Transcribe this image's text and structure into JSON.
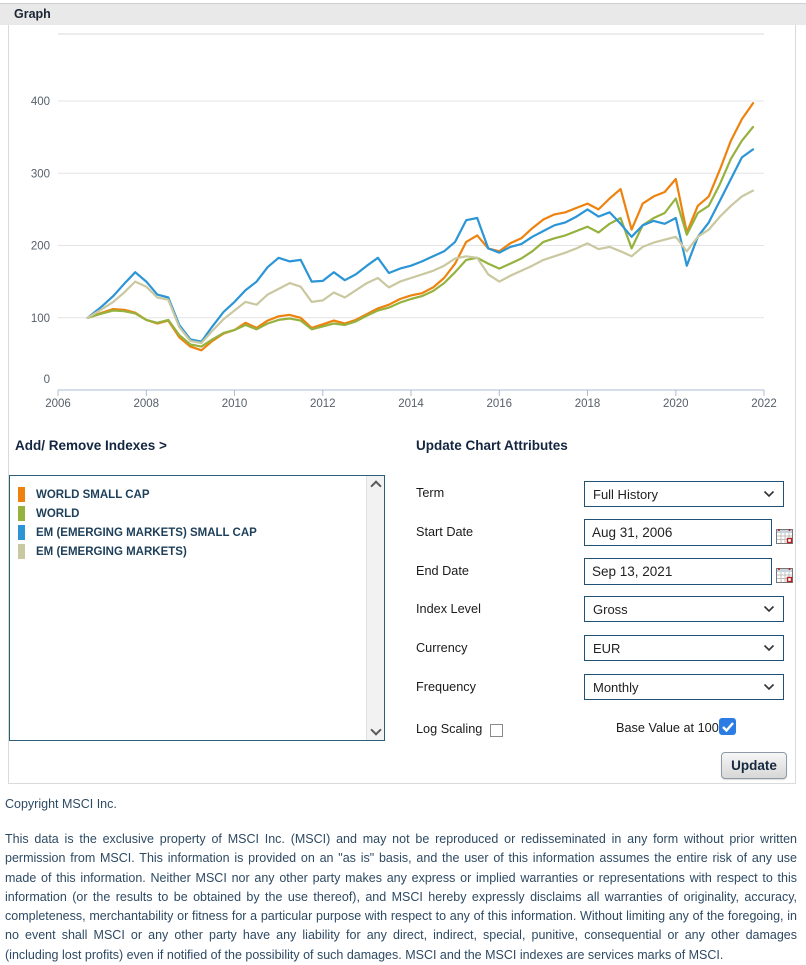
{
  "header": {
    "title": "Graph"
  },
  "chart_data": {
    "type": "line",
    "x": [
      2006.67,
      2007.0,
      2007.25,
      2007.5,
      2007.75,
      2008.0,
      2008.25,
      2008.5,
      2008.75,
      2009.0,
      2009.25,
      2009.5,
      2009.75,
      2010.0,
      2010.25,
      2010.5,
      2010.75,
      2011.0,
      2011.25,
      2011.5,
      2011.75,
      2012.0,
      2012.25,
      2012.5,
      2012.75,
      2013.0,
      2013.25,
      2013.5,
      2013.75,
      2014.0,
      2014.25,
      2014.5,
      2014.75,
      2015.0,
      2015.25,
      2015.5,
      2015.75,
      2016.0,
      2016.25,
      2016.5,
      2016.75,
      2017.0,
      2017.25,
      2017.5,
      2017.75,
      2018.0,
      2018.25,
      2018.5,
      2018.75,
      2019.0,
      2019.25,
      2019.5,
      2019.75,
      2020.0,
      2020.25,
      2020.5,
      2020.75,
      2021.0,
      2021.25,
      2021.5,
      2021.75
    ],
    "series": [
      {
        "name": "WORLD SMALL CAP",
        "color": "#ee820e",
        "values": [
          100,
          107,
          112,
          111,
          107,
          97,
          92,
          96,
          73,
          60,
          55,
          68,
          78,
          83,
          93,
          86,
          96,
          102,
          104,
          100,
          86,
          91,
          96,
          92,
          97,
          105,
          113,
          118,
          126,
          131,
          134,
          142,
          155,
          175,
          205,
          214,
          196,
          192,
          203,
          210,
          224,
          236,
          243,
          246,
          252,
          258,
          250,
          265,
          278,
          222,
          258,
          268,
          274,
          292,
          218,
          255,
          268,
          305,
          345,
          375,
          397
        ]
      },
      {
        "name": "WORLD",
        "color": "#96b23e",
        "values": [
          100,
          106,
          110,
          109,
          106,
          97,
          93,
          97,
          76,
          63,
          60,
          70,
          79,
          83,
          90,
          84,
          92,
          97,
          99,
          96,
          84,
          88,
          92,
          90,
          95,
          103,
          110,
          114,
          121,
          126,
          130,
          137,
          148,
          163,
          180,
          183,
          175,
          168,
          175,
          182,
          192,
          205,
          210,
          214,
          220,
          226,
          218,
          230,
          238,
          196,
          228,
          238,
          245,
          265,
          215,
          245,
          255,
          285,
          320,
          345,
          364
        ]
      },
      {
        "name": "EM (EMERGING MARKETS) SMALL CAP",
        "color": "#2b95d6",
        "values": [
          100,
          116,
          130,
          147,
          163,
          150,
          132,
          128,
          90,
          70,
          67,
          88,
          108,
          122,
          138,
          150,
          170,
          183,
          178,
          180,
          150,
          151,
          163,
          152,
          160,
          172,
          183,
          162,
          168,
          172,
          178,
          185,
          192,
          205,
          235,
          238,
          196,
          190,
          198,
          202,
          212,
          220,
          228,
          232,
          240,
          250,
          240,
          246,
          230,
          212,
          228,
          234,
          230,
          238,
          172,
          212,
          232,
          262,
          292,
          322,
          333
        ]
      },
      {
        "name": "EM (EMERGING MARKETS)",
        "color": "#cac8a0",
        "values": [
          100,
          112,
          122,
          135,
          150,
          143,
          128,
          125,
          87,
          68,
          65,
          82,
          98,
          110,
          122,
          118,
          132,
          140,
          148,
          143,
          122,
          124,
          135,
          128,
          138,
          148,
          155,
          142,
          150,
          155,
          160,
          165,
          172,
          182,
          185,
          183,
          160,
          150,
          158,
          165,
          172,
          180,
          185,
          190,
          196,
          203,
          195,
          198,
          192,
          185,
          198,
          204,
          208,
          212,
          192,
          212,
          222,
          240,
          255,
          268,
          276
        ]
      }
    ],
    "title": "",
    "xlabel": "",
    "ylabel": "",
    "x_ticks": [
      2006,
      2008,
      2010,
      2012,
      2014,
      2016,
      2018,
      2020,
      2022
    ],
    "y_ticks": [
      0,
      100,
      200,
      300,
      400
    ],
    "ylim": [
      0,
      490
    ],
    "grid": true,
    "legend_position": "listbox-lower-left"
  },
  "indexes_panel": {
    "title": "Add/ Remove Indexes >"
  },
  "form": {
    "title": "Update Chart Attributes",
    "term_label": "Term",
    "term_value": "Full History",
    "start_date_label": "Start Date",
    "start_date_value": "Aug 31, 2006",
    "end_date_label": "End Date",
    "end_date_value": "Sep 13, 2021",
    "index_level_label": "Index Level",
    "index_level_value": "Gross",
    "currency_label": "Currency",
    "currency_value": "EUR",
    "frequency_label": "Frequency",
    "frequency_value": "Monthly",
    "log_scaling_label": "Log Scaling",
    "log_scaling_checked": false,
    "base_value_label": "Base Value at 100",
    "base_value_checked": true,
    "update_button": "Update"
  },
  "footer": {
    "copyright": "Copyright MSCI Inc.",
    "legal": "This data is the exclusive property of MSCI Inc. (MSCI) and may not be reproduced or redisseminated in any form without prior written permission from MSCI. This information is provided on an \"as is\" basis, and the user of this information assumes the entire risk of any use made of this information. Neither MSCI nor any other party makes any express or implied warranties or representations with respect to this information (or the results to be obtained by the use thereof), and MSCI hereby expressly disclaims all warranties of originality, accuracy, completeness, merchantability or fitness for a particular purpose with respect to any of this information. Without limiting any of the foregoing, in no event shall MSCI or any other party have any liability for any direct, indirect, special, punitive, consequential or any other damages (including lost profits) even if notified of the possibility of such damages. MSCI and the MSCI indexes are services marks of MSCI."
  }
}
